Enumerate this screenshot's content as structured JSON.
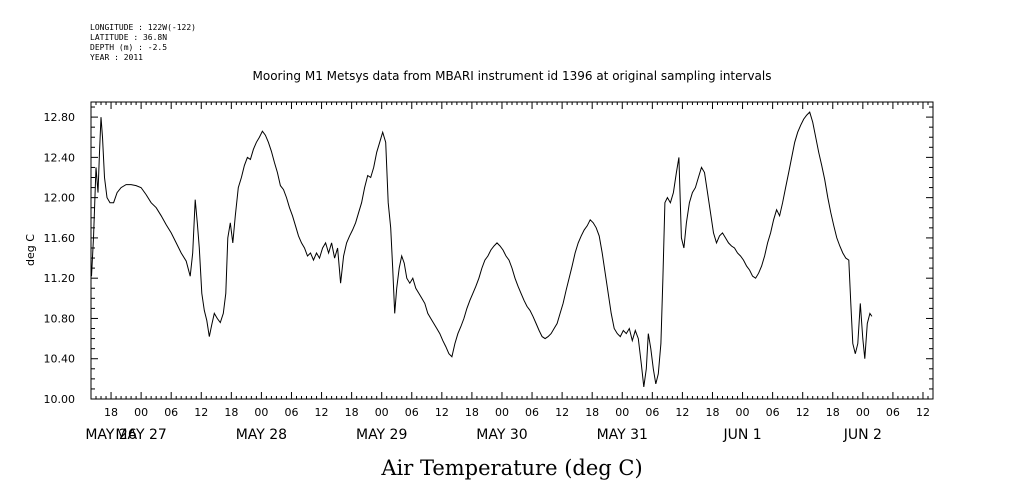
{
  "header": {
    "lines": [
      "LONGITUDE : 122W(-122)",
      "LATITUDE : 36.8N",
      "DEPTH (m) : -2.5",
      "YEAR : 2011"
    ]
  },
  "chart_data": {
    "type": "line",
    "title": "Mooring M1 Metsys data from MBARI instrument id 1396 at original sampling intervals",
    "xlabel": "Air Temperature (deg C)",
    "ylabel": "deg C",
    "ylim": [
      10.0,
      12.95
    ],
    "yticks": [
      "10.00",
      "10.40",
      "10.80",
      "11.20",
      "11.60",
      "12.00",
      "12.40",
      "12.80"
    ],
    "xlim_hours": [
      14,
      182
    ],
    "hour_tick_labels": [
      "18",
      "00",
      "06",
      "12",
      "18",
      "00",
      "06",
      "12",
      "18",
      "00",
      "06",
      "12",
      "18",
      "00",
      "06",
      "12",
      "18",
      "00",
      "06",
      "12",
      "18",
      "00",
      "06",
      "12",
      "18",
      "00",
      "06",
      "12"
    ],
    "date_labels": [
      "MAY 26",
      "MAY 27",
      "MAY 28",
      "MAY 29",
      "MAY 30",
      "MAY 31",
      "JUN  1",
      "JUN  2"
    ],
    "grid": false,
    "series": [
      {
        "color": "#000000",
        "points": [
          [
            14.1,
            11.22
          ],
          [
            14.5,
            11.6
          ],
          [
            15.0,
            12.3
          ],
          [
            15.4,
            12.05
          ],
          [
            15.7,
            12.45
          ],
          [
            16.0,
            12.8
          ],
          [
            16.3,
            12.6
          ],
          [
            16.7,
            12.2
          ],
          [
            17.2,
            12.0
          ],
          [
            17.8,
            11.95
          ],
          [
            18.5,
            11.95
          ],
          [
            19.2,
            12.05
          ],
          [
            20.0,
            12.1
          ],
          [
            21.0,
            12.13
          ],
          [
            22.0,
            12.13
          ],
          [
            23.0,
            12.12
          ],
          [
            24.0,
            12.1
          ],
          [
            25.0,
            12.03
          ],
          [
            26.0,
            11.95
          ],
          [
            27.0,
            11.9
          ],
          [
            28.0,
            11.82
          ],
          [
            29.0,
            11.73
          ],
          [
            30.0,
            11.65
          ],
          [
            31.0,
            11.55
          ],
          [
            32.0,
            11.45
          ],
          [
            33.0,
            11.37
          ],
          [
            33.8,
            11.22
          ],
          [
            34.3,
            11.45
          ],
          [
            34.8,
            11.98
          ],
          [
            35.2,
            11.75
          ],
          [
            35.6,
            11.5
          ],
          [
            36.1,
            11.05
          ],
          [
            36.6,
            10.88
          ],
          [
            37.1,
            10.78
          ],
          [
            37.6,
            10.62
          ],
          [
            38.1,
            10.74
          ],
          [
            38.6,
            10.85
          ],
          [
            39.2,
            10.8
          ],
          [
            39.8,
            10.76
          ],
          [
            40.4,
            10.85
          ],
          [
            40.9,
            11.05
          ],
          [
            41.3,
            11.6
          ],
          [
            41.8,
            11.75
          ],
          [
            42.3,
            11.55
          ],
          [
            42.8,
            11.82
          ],
          [
            43.4,
            12.1
          ],
          [
            44.0,
            12.2
          ],
          [
            44.6,
            12.32
          ],
          [
            45.2,
            12.4
          ],
          [
            45.8,
            12.38
          ],
          [
            46.4,
            12.48
          ],
          [
            47.0,
            12.55
          ],
          [
            47.6,
            12.6
          ],
          [
            48.2,
            12.66
          ],
          [
            48.8,
            12.62
          ],
          [
            49.4,
            12.55
          ],
          [
            50.0,
            12.46
          ],
          [
            50.6,
            12.35
          ],
          [
            51.2,
            12.25
          ],
          [
            51.8,
            12.12
          ],
          [
            52.4,
            12.08
          ],
          [
            53.0,
            12.0
          ],
          [
            53.6,
            11.9
          ],
          [
            54.2,
            11.82
          ],
          [
            54.8,
            11.72
          ],
          [
            55.4,
            11.62
          ],
          [
            56.0,
            11.55
          ],
          [
            56.6,
            11.5
          ],
          [
            57.2,
            11.42
          ],
          [
            57.8,
            11.45
          ],
          [
            58.4,
            11.38
          ],
          [
            59.0,
            11.45
          ],
          [
            59.6,
            11.4
          ],
          [
            60.2,
            11.5
          ],
          [
            60.8,
            11.55
          ],
          [
            61.4,
            11.45
          ],
          [
            62.0,
            11.55
          ],
          [
            62.6,
            11.4
          ],
          [
            63.2,
            11.5
          ],
          [
            63.8,
            11.15
          ],
          [
            64.4,
            11.42
          ],
          [
            65.0,
            11.55
          ],
          [
            65.6,
            11.62
          ],
          [
            66.2,
            11.68
          ],
          [
            66.8,
            11.75
          ],
          [
            67.4,
            11.85
          ],
          [
            68.0,
            11.95
          ],
          [
            68.6,
            12.1
          ],
          [
            69.2,
            12.22
          ],
          [
            69.8,
            12.2
          ],
          [
            70.4,
            12.3
          ],
          [
            71.0,
            12.45
          ],
          [
            71.6,
            12.55
          ],
          [
            72.2,
            12.65
          ],
          [
            72.8,
            12.55
          ],
          [
            73.3,
            11.95
          ],
          [
            73.8,
            11.7
          ],
          [
            74.2,
            11.3
          ],
          [
            74.6,
            10.85
          ],
          [
            75.0,
            11.1
          ],
          [
            75.5,
            11.3
          ],
          [
            76.0,
            11.42
          ],
          [
            76.5,
            11.35
          ],
          [
            77.0,
            11.2
          ],
          [
            77.6,
            11.15
          ],
          [
            78.2,
            11.2
          ],
          [
            78.8,
            11.1
          ],
          [
            79.4,
            11.05
          ],
          [
            80.0,
            11.0
          ],
          [
            80.6,
            10.95
          ],
          [
            81.2,
            10.85
          ],
          [
            81.8,
            10.8
          ],
          [
            82.4,
            10.75
          ],
          [
            83.0,
            10.7
          ],
          [
            83.6,
            10.65
          ],
          [
            84.2,
            10.58
          ],
          [
            84.8,
            10.52
          ],
          [
            85.4,
            10.45
          ],
          [
            86.0,
            10.42
          ],
          [
            86.6,
            10.55
          ],
          [
            87.2,
            10.65
          ],
          [
            87.8,
            10.72
          ],
          [
            88.4,
            10.8
          ],
          [
            89.0,
            10.9
          ],
          [
            89.6,
            10.98
          ],
          [
            90.2,
            11.05
          ],
          [
            90.8,
            11.12
          ],
          [
            91.4,
            11.2
          ],
          [
            92.0,
            11.3
          ],
          [
            92.6,
            11.38
          ],
          [
            93.2,
            11.42
          ],
          [
            93.8,
            11.48
          ],
          [
            94.4,
            11.52
          ],
          [
            95.0,
            11.55
          ],
          [
            95.6,
            11.52
          ],
          [
            96.2,
            11.48
          ],
          [
            96.8,
            11.42
          ],
          [
            97.4,
            11.38
          ],
          [
            98.0,
            11.3
          ],
          [
            98.6,
            11.2
          ],
          [
            99.2,
            11.12
          ],
          [
            99.8,
            11.05
          ],
          [
            100.4,
            10.98
          ],
          [
            101.0,
            10.92
          ],
          [
            101.6,
            10.88
          ],
          [
            102.2,
            10.82
          ],
          [
            102.8,
            10.75
          ],
          [
            103.4,
            10.68
          ],
          [
            104.0,
            10.62
          ],
          [
            104.6,
            10.6
          ],
          [
            105.2,
            10.62
          ],
          [
            105.8,
            10.65
          ],
          [
            106.4,
            10.7
          ],
          [
            107.0,
            10.75
          ],
          [
            107.6,
            10.85
          ],
          [
            108.2,
            10.95
          ],
          [
            108.8,
            11.08
          ],
          [
            109.4,
            11.2
          ],
          [
            110.0,
            11.32
          ],
          [
            110.6,
            11.45
          ],
          [
            111.2,
            11.55
          ],
          [
            111.8,
            11.62
          ],
          [
            112.4,
            11.68
          ],
          [
            113.0,
            11.72
          ],
          [
            113.6,
            11.78
          ],
          [
            114.2,
            11.75
          ],
          [
            114.8,
            11.7
          ],
          [
            115.4,
            11.62
          ],
          [
            116.0,
            11.45
          ],
          [
            116.6,
            11.25
          ],
          [
            117.2,
            11.05
          ],
          [
            117.8,
            10.85
          ],
          [
            118.4,
            10.7
          ],
          [
            119.0,
            10.65
          ],
          [
            119.6,
            10.62
          ],
          [
            120.2,
            10.68
          ],
          [
            120.8,
            10.65
          ],
          [
            121.4,
            10.7
          ],
          [
            122.0,
            10.58
          ],
          [
            122.6,
            10.68
          ],
          [
            123.2,
            10.6
          ],
          [
            123.8,
            10.35
          ],
          [
            124.3,
            10.12
          ],
          [
            124.8,
            10.3
          ],
          [
            125.2,
            10.65
          ],
          [
            125.7,
            10.5
          ],
          [
            126.2,
            10.3
          ],
          [
            126.7,
            10.15
          ],
          [
            127.2,
            10.25
          ],
          [
            127.7,
            10.55
          ],
          [
            128.1,
            11.2
          ],
          [
            128.5,
            11.95
          ],
          [
            129.0,
            12.0
          ],
          [
            129.6,
            11.95
          ],
          [
            130.2,
            12.05
          ],
          [
            130.8,
            12.25
          ],
          [
            131.3,
            12.4
          ],
          [
            131.8,
            11.6
          ],
          [
            132.3,
            11.5
          ],
          [
            132.8,
            11.75
          ],
          [
            133.4,
            11.95
          ],
          [
            134.0,
            12.05
          ],
          [
            134.6,
            12.1
          ],
          [
            135.2,
            12.2
          ],
          [
            135.8,
            12.3
          ],
          [
            136.4,
            12.25
          ],
          [
            137.0,
            12.05
          ],
          [
            137.6,
            11.85
          ],
          [
            138.2,
            11.65
          ],
          [
            138.8,
            11.55
          ],
          [
            139.4,
            11.62
          ],
          [
            140.0,
            11.65
          ],
          [
            140.6,
            11.6
          ],
          [
            141.2,
            11.55
          ],
          [
            141.8,
            11.52
          ],
          [
            142.4,
            11.5
          ],
          [
            143.0,
            11.45
          ],
          [
            143.6,
            11.42
          ],
          [
            144.2,
            11.38
          ],
          [
            144.8,
            11.32
          ],
          [
            145.4,
            11.28
          ],
          [
            146.0,
            11.22
          ],
          [
            146.6,
            11.2
          ],
          [
            147.2,
            11.25
          ],
          [
            147.8,
            11.32
          ],
          [
            148.4,
            11.42
          ],
          [
            149.0,
            11.55
          ],
          [
            149.6,
            11.65
          ],
          [
            150.2,
            11.78
          ],
          [
            150.8,
            11.88
          ],
          [
            151.4,
            11.82
          ],
          [
            152.0,
            11.95
          ],
          [
            152.6,
            12.1
          ],
          [
            153.2,
            12.25
          ],
          [
            153.8,
            12.4
          ],
          [
            154.4,
            12.55
          ],
          [
            155.0,
            12.65
          ],
          [
            155.6,
            12.72
          ],
          [
            156.2,
            12.78
          ],
          [
            156.8,
            12.82
          ],
          [
            157.4,
            12.85
          ],
          [
            158.0,
            12.75
          ],
          [
            158.6,
            12.6
          ],
          [
            159.2,
            12.45
          ],
          [
            159.8,
            12.32
          ],
          [
            160.4,
            12.18
          ],
          [
            161.0,
            12.0
          ],
          [
            161.6,
            11.85
          ],
          [
            162.2,
            11.72
          ],
          [
            162.8,
            11.6
          ],
          [
            163.4,
            11.52
          ],
          [
            164.0,
            11.45
          ],
          [
            164.6,
            11.4
          ],
          [
            165.2,
            11.38
          ],
          [
            165.6,
            10.95
          ],
          [
            166.0,
            10.55
          ],
          [
            166.5,
            10.45
          ],
          [
            167.0,
            10.55
          ],
          [
            167.5,
            10.95
          ],
          [
            168.0,
            10.6
          ],
          [
            168.4,
            10.4
          ],
          [
            168.9,
            10.75
          ],
          [
            169.4,
            10.85
          ],
          [
            169.8,
            10.82
          ]
        ]
      }
    ]
  }
}
